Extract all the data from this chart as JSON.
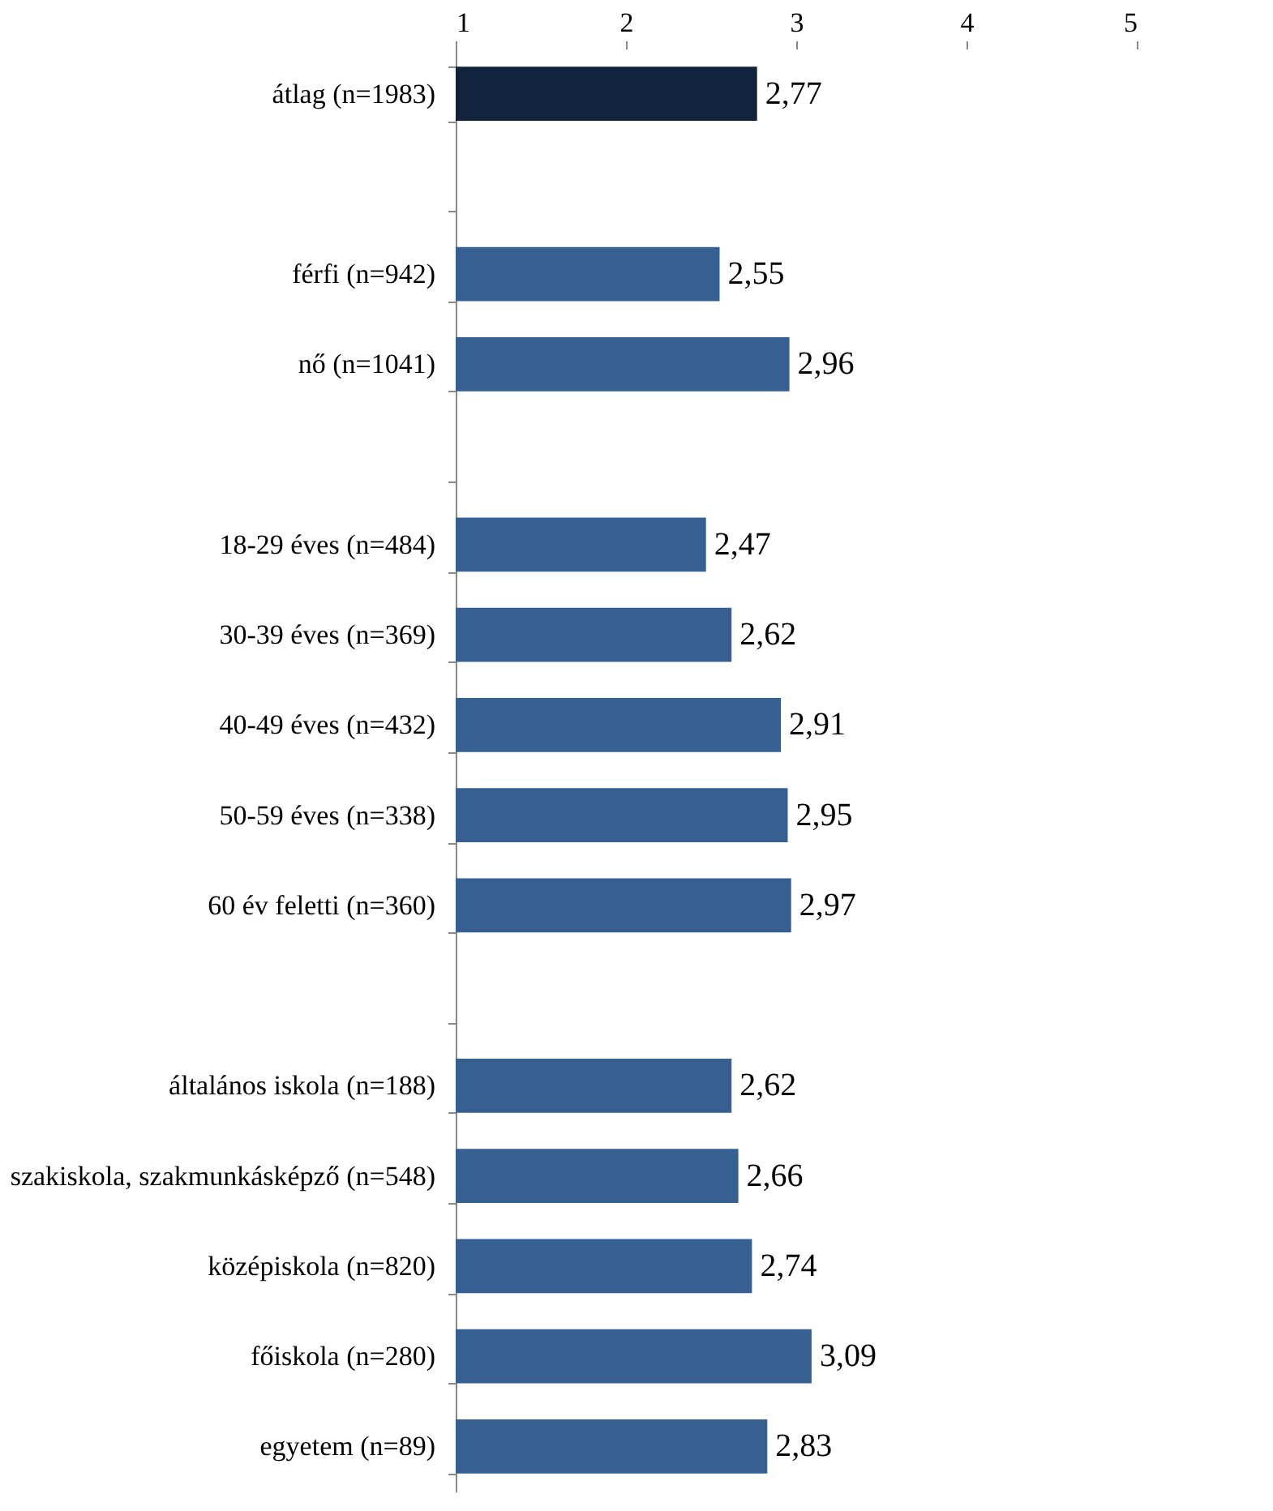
{
  "chart_data": {
    "type": "bar",
    "orientation": "horizontal",
    "categories": [
      "átlag (n=1983)",
      null,
      "férfi (n=942)",
      "nő (n=1041)",
      null,
      "18-29 éves (n=484)",
      "30-39 éves (n=369)",
      "40-49 éves (n=432)",
      "50-59 éves (n=338)",
      "60 év feletti (n=360)",
      null,
      "általános iskola (n=188)",
      "szakiskola, szakmunkásképző (n=548)",
      "középiskola (n=820)",
      "főiskola (n=280)",
      "egyetem (n=89)"
    ],
    "values": [
      2.77,
      null,
      2.55,
      2.96,
      null,
      2.47,
      2.62,
      2.91,
      2.95,
      2.97,
      null,
      2.62,
      2.66,
      2.74,
      3.09,
      2.83
    ],
    "colors": [
      "#12243d",
      "#366092",
      "#366092",
      "#366092",
      "#366092",
      "#366092",
      "#366092",
      "#366092",
      "#366092",
      "#366092",
      "#366092",
      "#366092",
      "#366092",
      "#366092",
      "#366092",
      "#366092"
    ],
    "value_labels": [
      "2,77",
      null,
      "2,55",
      "2,96",
      null,
      "2,47",
      "2,62",
      "2,91",
      "2,95",
      "2,97",
      null,
      "2,62",
      "2,66",
      "2,74",
      "3,09",
      "2,83"
    ],
    "xlim": [
      1,
      5
    ],
    "xticks": [
      1,
      2,
      3,
      4,
      5
    ],
    "grid": false
  }
}
